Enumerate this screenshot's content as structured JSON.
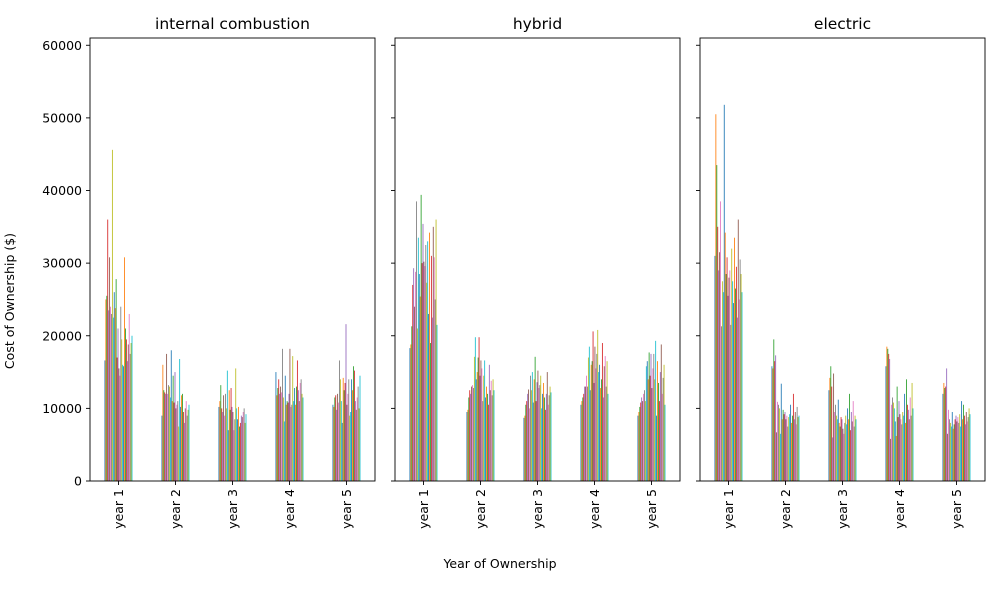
{
  "chart_data": {
    "type": "bar",
    "xlabel": "Year of Ownership",
    "ylabel": "Cost of Ownership ($)",
    "ylim": [
      0,
      61000
    ],
    "yticks": [
      0,
      10000,
      20000,
      30000,
      40000,
      50000,
      60000
    ],
    "categories": [
      "year 1",
      "year 2",
      "year 3",
      "year 4",
      "year 5"
    ],
    "bars_per_category": 30,
    "grid": false,
    "legend": "none",
    "palette": [
      "#1f77b4",
      "#ff7f0e",
      "#2ca02c",
      "#d62728",
      "#9467bd",
      "#8c564b",
      "#e377c2",
      "#7f7f7f",
      "#bcbd22",
      "#17becf"
    ],
    "panels": [
      {
        "title": "internal combustion",
        "values": [
          [
            16600,
            25000,
            25500,
            36000,
            23500,
            30800,
            24000,
            23000,
            45600,
            22500,
            26000,
            23800,
            27800,
            17000,
            21000,
            15500,
            14500,
            24000,
            19500,
            16000,
            15800,
            30800,
            21000,
            19500,
            16500,
            18800,
            23000,
            17500,
            19000,
            20000
          ],
          [
            9000,
            16000,
            12500,
            12200,
            12000,
            17500,
            12000,
            13200,
            13000,
            11500,
            18000,
            11000,
            14500,
            10800,
            15000,
            10000,
            10500,
            11000,
            7500,
            16800,
            10200,
            11800,
            12000,
            9500,
            8000,
            10000,
            11000,
            9000,
            9800,
            10500
          ],
          [
            10200,
            11000,
            13200,
            10000,
            9500,
            11800,
            9000,
            12000,
            10000,
            15200,
            7000,
            12500,
            9800,
            12800,
            10200,
            9500,
            7000,
            8500,
            15500,
            10000,
            8500,
            10200,
            7500,
            8000,
            9000,
            8800,
            9500,
            10000,
            8000,
            9200
          ],
          [
            15000,
            11800,
            12800,
            14000,
            12000,
            13000,
            12200,
            18200,
            11500,
            8200,
            14500,
            10500,
            11000,
            10800,
            12000,
            18200,
            10200,
            10500,
            17200,
            11000,
            12800,
            10500,
            13000,
            16600,
            12500,
            11000,
            13500,
            14000,
            12000,
            11500
          ],
          [
            10500,
            10200,
            11500,
            11800,
            9800,
            12000,
            10800,
            16600,
            14000,
            11000,
            8000,
            14200,
            12500,
            13500,
            21600,
            10500,
            12000,
            14000,
            9000,
            9500,
            14000,
            12500,
            15800,
            15200,
            11000,
            9800,
            11500,
            13000,
            10000,
            14500
          ]
        ]
      },
      {
        "title": "hybrid",
        "values": [
          [
            18300,
            18800,
            21300,
            27000,
            29300,
            24000,
            28800,
            38500,
            21000,
            33500,
            28500,
            25400,
            39400,
            30000,
            35400,
            30200,
            29600,
            32500,
            27300,
            33000,
            23000,
            34200,
            19000,
            31000,
            22500,
            35000,
            30800,
            25000,
            36000,
            21500
          ],
          [
            9500,
            9800,
            11500,
            12500,
            12000,
            13000,
            13200,
            12800,
            17100,
            19800,
            14000,
            15000,
            17000,
            19800,
            14500,
            16600,
            15500,
            11000,
            14500,
            16600,
            11500,
            13000,
            12000,
            10500,
            16000,
            12500,
            13800,
            11800,
            14000,
            12500
          ],
          [
            8700,
            9000,
            10500,
            11000,
            12000,
            12600,
            10000,
            14500,
            12500,
            15000,
            10800,
            14000,
            17100,
            11000,
            13600,
            15200,
            12800,
            13200,
            14500,
            10000,
            12000,
            13500,
            11500,
            9800,
            12000,
            15000,
            10500,
            11800,
            13000,
            12200
          ],
          [
            10500,
            11000,
            11500,
            12000,
            13000,
            13000,
            14500,
            13000,
            17000,
            18500,
            12500,
            16000,
            16500,
            20600,
            13500,
            18500,
            15500,
            17500,
            20800,
            15000,
            16000,
            12800,
            14000,
            19000,
            11500,
            15800,
            17200,
            13000,
            16500,
            12000
          ],
          [
            9000,
            9500,
            10200,
            10800,
            11500,
            11000,
            12000,
            12500,
            11000,
            15800,
            16500,
            14000,
            17700,
            14500,
            17500,
            12800,
            15500,
            17500,
            14000,
            19300,
            9000,
            16500,
            13500,
            11000,
            15000,
            18800,
            12000,
            14200,
            16000,
            10500
          ]
        ]
      },
      {
        "title": "electric",
        "values": [
          [
            31000,
            50500,
            43500,
            35000,
            29000,
            31500,
            38500,
            21300,
            27500,
            26000,
            51800,
            34200,
            28500,
            30800,
            25500,
            28000,
            29000,
            21500,
            32000,
            27500,
            24500,
            33500,
            26500,
            29500,
            22500,
            36000,
            25000,
            30500,
            28500,
            26000
          ],
          [
            15800,
            15500,
            19500,
            16500,
            17300,
            6700,
            10900,
            10500,
            10000,
            6500,
            13400,
            8500,
            9800,
            9200,
            9500,
            8500,
            9000,
            7500,
            8800,
            9200,
            10500,
            8000,
            9000,
            12000,
            8500,
            9500,
            7800,
            10200,
            8800,
            9000
          ],
          [
            12500,
            14200,
            15800,
            13000,
            6000,
            14800,
            9500,
            10500,
            9000,
            8500,
            11200,
            8000,
            7500,
            8800,
            8500,
            7200,
            6500,
            8000,
            9000,
            7800,
            10000,
            8500,
            12000,
            7000,
            9500,
            8200,
            11000,
            7500,
            9000,
            8500
          ],
          [
            15800,
            18500,
            18200,
            17500,
            16800,
            5800,
            10500,
            11500,
            10800,
            10000,
            8200,
            6200,
            13000,
            8800,
            11000,
            9200,
            8500,
            7800,
            9500,
            9000,
            12000,
            8000,
            14000,
            10500,
            9800,
            8500,
            11500,
            9000,
            13500,
            10000
          ],
          [
            12000,
            13500,
            12800,
            13000,
            15500,
            6500,
            9800,
            8500,
            8000,
            7500,
            9500,
            7200,
            7800,
            8500,
            9000,
            8200,
            8800,
            8000,
            9200,
            7500,
            11000,
            8500,
            10500,
            9000,
            7800,
            9500,
            8200,
            8800,
            10000,
            9200
          ]
        ]
      }
    ]
  }
}
